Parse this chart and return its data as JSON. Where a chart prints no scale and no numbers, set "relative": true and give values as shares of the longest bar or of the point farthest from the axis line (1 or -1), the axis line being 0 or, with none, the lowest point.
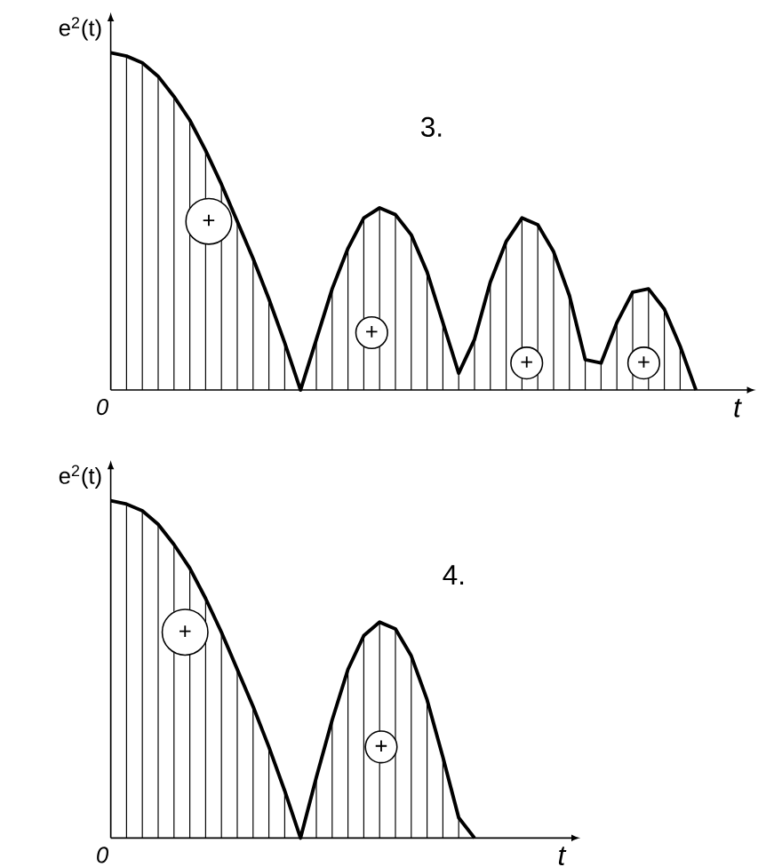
{
  "chart_data": [
    {
      "type": "line",
      "grid": "x",
      "title": "3.",
      "xlabel": "t",
      "ylabel": "e$^{2}$(t)",
      "relative": true,
      "color": "#000000",
      "categories": [
        null,
        null,
        null,
        null,
        null,
        null,
        null,
        null,
        null,
        null,
        null,
        null,
        null,
        null,
        null,
        null,
        null,
        null,
        null,
        null,
        null,
        null,
        null,
        null,
        null,
        null,
        null,
        null,
        null,
        null,
        null,
        null,
        null,
        null,
        null,
        null,
        null,
        null
      ],
      "values": [
        1.0,
        0.99,
        0.97,
        0.93,
        0.87,
        0.8,
        0.71,
        0.61,
        0.5,
        0.39,
        0.27,
        0.14,
        0,
        0.15,
        0.3,
        0.42,
        0.51,
        0.54,
        0.52,
        0.46,
        0.35,
        0.2,
        0.05,
        0.15,
        0.32,
        0.44,
        0.51,
        0.49,
        0.41,
        0.28,
        0.09,
        0.08,
        0.2,
        0.29,
        0.3,
        0.24,
        0.13,
        0
      ],
      "annotations": [
        "0",
        "+",
        "+",
        "+",
        "+"
      ]
    },
    {
      "type": "line",
      "grid": "x",
      "title": "4.",
      "xlabel": "t",
      "ylabel": "e$^{2}$(t)",
      "relative": true,
      "color": "#000000",
      "categories": [
        null,
        null,
        null,
        null,
        null,
        null,
        null,
        null,
        null,
        null,
        null,
        null,
        null,
        null,
        null,
        null,
        null,
        null,
        null,
        null,
        null,
        null,
        null,
        null
      ],
      "values": [
        1.0,
        0.99,
        0.97,
        0.93,
        0.87,
        0.8,
        0.71,
        0.61,
        0.5,
        0.39,
        0.27,
        0.14,
        0,
        0.18,
        0.35,
        0.5,
        0.6,
        0.64,
        0.62,
        0.54,
        0.41,
        0.24,
        0.06,
        0
      ],
      "annotations": [
        "0",
        "+",
        "+"
      ]
    }
  ]
}
